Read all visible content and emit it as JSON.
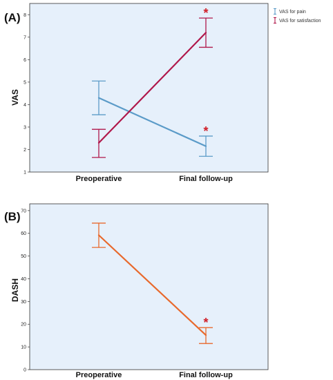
{
  "chart_data": [
    {
      "type": "line",
      "panel_label": "(A)",
      "title": "",
      "xlabel": "",
      "ylabel": "VAS",
      "categories": [
        "Preoperative",
        "Final follow-up"
      ],
      "ylim": [
        1,
        8.5
      ],
      "yticks": [
        "1",
        "2",
        "3",
        "4",
        "5",
        "6",
        "7",
        "8"
      ],
      "grid": false,
      "legend_position": "top-right",
      "background": "#e6f0fb",
      "series": [
        {
          "name": "VAS for pain",
          "color": "#5b9bc8",
          "values": [
            4.3,
            2.15
          ],
          "error_low": [
            3.55,
            1.7
          ],
          "error_high": [
            5.05,
            2.6
          ],
          "markers": [
            "",
            "*"
          ]
        },
        {
          "name": "VAS for satisfaction",
          "color": "#b0174a",
          "values": [
            2.3,
            7.2
          ],
          "error_low": [
            1.65,
            6.55
          ],
          "error_high": [
            2.9,
            7.85
          ],
          "markers": [
            "",
            "*"
          ]
        }
      ]
    },
    {
      "type": "line",
      "panel_label": "(B)",
      "title": "",
      "xlabel": "",
      "ylabel": "DASH",
      "categories": [
        "Preoperative",
        "Final follow-up"
      ],
      "ylim": [
        0,
        73
      ],
      "yticks": [
        "0",
        "10",
        "20",
        "30",
        "40",
        "50",
        "60",
        "70"
      ],
      "grid": false,
      "background": "#e6f0fb",
      "series": [
        {
          "name": "",
          "color": "#e8692c",
          "values": [
            59.2,
            15.2
          ],
          "error_low": [
            53.8,
            11.5
          ],
          "error_high": [
            64.5,
            18.5
          ],
          "markers": [
            "",
            "*"
          ]
        }
      ]
    }
  ],
  "annotation_color": "#d0202a"
}
